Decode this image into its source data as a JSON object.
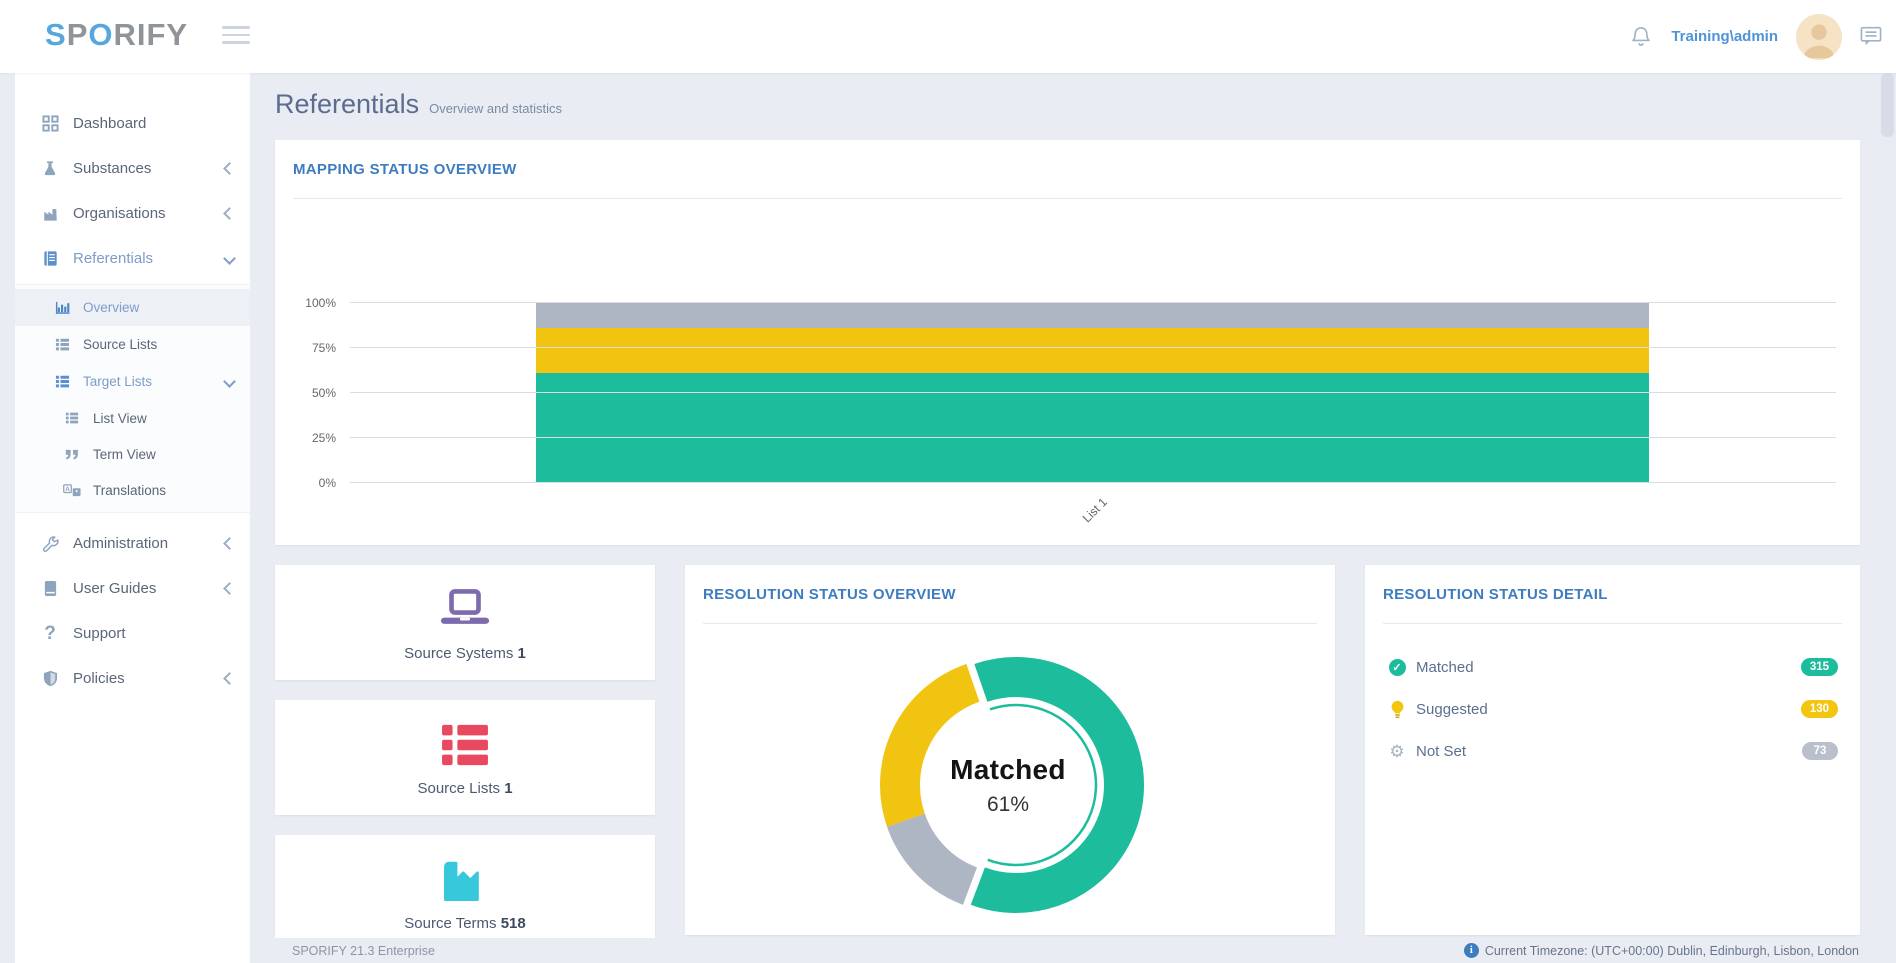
{
  "navbar": {
    "logo": {
      "part_s": "S",
      "part_p": "P",
      "part_o": "O",
      "part_rify": "RIFY"
    },
    "user_name": "Training\\admin"
  },
  "sidebar": {
    "items": [
      {
        "label": "Dashboard",
        "icon": "dashboard-grid"
      },
      {
        "label": "Substances",
        "icon": "flask",
        "arrow": "left"
      },
      {
        "label": "Organisations",
        "icon": "factory",
        "arrow": "left"
      },
      {
        "label": "Referentials",
        "icon": "journal",
        "arrow": "down",
        "state": "expanded"
      },
      {
        "label": "Overview",
        "icon": "bar-chart",
        "state": "active"
      },
      {
        "label": "Source Lists",
        "icon": "list"
      },
      {
        "label": "Target Lists",
        "icon": "list",
        "arrow": "down",
        "state": "expanded"
      },
      {
        "label": "List View",
        "icon": "list"
      },
      {
        "label": "Term View",
        "icon": "quotes"
      },
      {
        "label": "Translations",
        "icon": "translate"
      },
      {
        "label": "Administration",
        "icon": "wrench",
        "arrow": "left"
      },
      {
        "label": "User Guides",
        "icon": "book",
        "arrow": "left"
      },
      {
        "label": "Support",
        "icon": "question"
      },
      {
        "label": "Policies",
        "icon": "shield",
        "arrow": "left"
      }
    ]
  },
  "page": {
    "title": "Referentials",
    "subtitle": "Overview and statistics"
  },
  "mapping_card": {
    "title": "MAPPING STATUS OVERVIEW"
  },
  "stats": [
    {
      "label": "Source Systems",
      "value": "1",
      "icon": "laptop-icon",
      "color": "#7e6bad"
    },
    {
      "label": "Source Lists",
      "value": "1",
      "icon": "list-icon",
      "color": "#e8495f"
    },
    {
      "label": "Source Terms",
      "value": "518",
      "icon": "factory-icon",
      "color": "#38c8dc"
    }
  ],
  "resolution_overview_card": {
    "title": "RESOLUTION STATUS OVERVIEW"
  },
  "resolution_detail_card": {
    "title": "RESOLUTION STATUS DETAIL",
    "rows": [
      {
        "label": "Matched",
        "count": "315",
        "icon": "check-circle-icon",
        "color": "#1dbc9c"
      },
      {
        "label": "Suggested",
        "count": "130",
        "icon": "bulb-icon",
        "color": "#f3c50e"
      },
      {
        "label": "Not Set",
        "count": "73",
        "icon": "gear-icon",
        "color": "#b9c0cb"
      }
    ]
  },
  "footer": {
    "left": "SPORIFY 21.3 Enterprise",
    "right": "Current Timezone: (UTC+00:00) Dublin, Edinburgh, Lisbon, London"
  },
  "chart_data": [
    {
      "type": "bar",
      "stacked": true,
      "percent": true,
      "title": "MAPPING STATUS OVERVIEW",
      "categories": [
        "List 1"
      ],
      "series": [
        {
          "name": "Matched",
          "values": [
            61
          ],
          "color": "#1dbc9c"
        },
        {
          "name": "Suggested",
          "values": [
            25
          ],
          "color": "#f0c411"
        },
        {
          "name": "Not Set",
          "values": [
            14
          ],
          "color": "#aeb6c3"
        }
      ],
      "ylim": [
        0,
        100
      ],
      "yticks": [
        "0%",
        "25%",
        "50%",
        "75%",
        "100%"
      ],
      "grid": true,
      "legend": "none"
    },
    {
      "type": "pie",
      "donut": true,
      "title": "RESOLUTION STATUS OVERVIEW",
      "slices": [
        {
          "name": "Matched",
          "value": 315,
          "pct": 61,
          "color": "#1dbc9c",
          "selected": true
        },
        {
          "name": "Not Set",
          "value": 73,
          "pct": 14,
          "color": "#aeb6c3"
        },
        {
          "name": "Suggested",
          "value": 130,
          "pct": 25,
          "color": "#f0c411"
        }
      ],
      "center_label": "Matched",
      "center_value": "61%",
      "start_angle_deg": -19,
      "legend": "none"
    }
  ]
}
